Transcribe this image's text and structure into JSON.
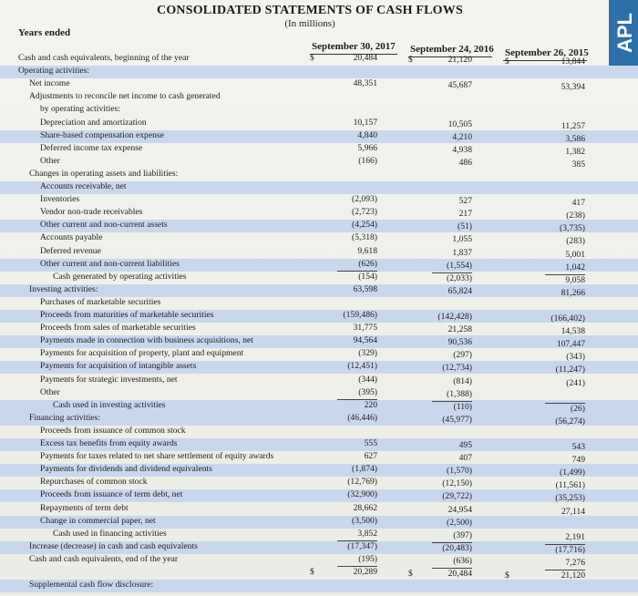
{
  "title": "CONSOLIDATED STATEMENTS OF CASH FLOWS",
  "subtitle": "(In millions)",
  "side_tab": "APL",
  "years_label": "Years ended",
  "columns": [
    "September 30, 2017",
    "September 24, 2016",
    "September 26, 2015"
  ],
  "rows": [
    {
      "label": "Cash and cash equivalents, beginning of the year",
      "indent": 0,
      "cur": "$",
      "values": [
        "20,484",
        "21,120",
        "13,844"
      ]
    },
    {
      "label": "Operating activities:",
      "indent": 0,
      "values": [
        "",
        "",
        ""
      ]
    },
    {
      "label": "Net income",
      "indent": 1,
      "values": [
        "48,351",
        "45,687",
        "53,394"
      ]
    },
    {
      "label": "Adjustments to reconcile net income to cash generated",
      "indent": 1,
      "values": [
        "",
        "",
        ""
      ]
    },
    {
      "label": "by operating activities:",
      "indent": 2,
      "values": [
        "",
        "",
        ""
      ]
    },
    {
      "label": "Depreciation and amortization",
      "indent": 2,
      "values": [
        "10,157",
        "10,505",
        "11,257"
      ]
    },
    {
      "label": "Share-based compensation expense",
      "indent": 2,
      "values": [
        "4,840",
        "4,210",
        "3,586"
      ]
    },
    {
      "label": "Deferred income tax expense",
      "indent": 2,
      "values": [
        "5,966",
        "4,938",
        "1,382"
      ]
    },
    {
      "label": "Other",
      "indent": 2,
      "values": [
        "(166)",
        "486",
        "385"
      ]
    },
    {
      "label": "Changes in operating assets and liabilities:",
      "indent": 1,
      "values": [
        "",
        "",
        ""
      ]
    },
    {
      "label": "Accounts receivable, net",
      "indent": 2,
      "values": [
        "",
        "",
        ""
      ]
    },
    {
      "label": "Inventories",
      "indent": 2,
      "values": [
        "(2,093)",
        "527",
        "417"
      ]
    },
    {
      "label": "Vendor non-trade receivables",
      "indent": 2,
      "values": [
        "(2,723)",
        "217",
        "(238)"
      ]
    },
    {
      "label": "Other current and non-current assets",
      "indent": 2,
      "values": [
        "(4,254)",
        "(51)",
        "(3,735)"
      ]
    },
    {
      "label": "Accounts payable",
      "indent": 2,
      "values": [
        "(5,318)",
        "1,055",
        "(283)"
      ]
    },
    {
      "label": "Deferred revenue",
      "indent": 2,
      "values": [
        "9,618",
        "1,837",
        "5,001"
      ]
    },
    {
      "label": "Other current and non-current liabilities",
      "indent": 2,
      "values": [
        "(626)",
        "(1,554)",
        "1,042"
      ]
    },
    {
      "label": "Cash generated by operating activities",
      "indent": 3,
      "values": [
        "(154)",
        "(2,033)",
        "9,058"
      ]
    },
    {
      "label": "Investing activities:",
      "indent": 1,
      "values": [
        "63,598",
        "65,824",
        "81,266"
      ]
    },
    {
      "label": "Purchases of marketable securities",
      "indent": 2,
      "values": [
        "",
        "",
        ""
      ]
    },
    {
      "label": "Proceeds from maturities of marketable securities",
      "indent": 2,
      "values": [
        "(159,486)",
        "(142,428)",
        "(166,402)"
      ]
    },
    {
      "label": "Proceeds from sales of marketable securities",
      "indent": 2,
      "values": [
        "31,775",
        "21,258",
        "14,538"
      ]
    },
    {
      "label": "Payments made in connection with business acquisitions, net",
      "indent": 2,
      "values": [
        "94,564",
        "90,536",
        "107,447"
      ]
    },
    {
      "label": "Payments for acquisition of property, plant and equipment",
      "indent": 2,
      "values": [
        "(329)",
        "(297)",
        "(343)"
      ]
    },
    {
      "label": "Payments for acquisition of intangible assets",
      "indent": 2,
      "values": [
        "(12,451)",
        "(12,734)",
        "(11,247)"
      ]
    },
    {
      "label": "Payments for strategic investments, net",
      "indent": 2,
      "values": [
        "(344)",
        "(814)",
        "(241)"
      ]
    },
    {
      "label": "Other",
      "indent": 2,
      "values": [
        "(395)",
        "(1,388)",
        ""
      ]
    },
    {
      "label": "Cash used in investing activities",
      "indent": 3,
      "values": [
        "220",
        "(110)",
        "(26)"
      ]
    },
    {
      "label": "Financing activities:",
      "indent": 1,
      "values": [
        "(46,446)",
        "(45,977)",
        "(56,274)"
      ]
    },
    {
      "label": "Proceeds from issuance of common stock",
      "indent": 2,
      "values": [
        "",
        "",
        ""
      ]
    },
    {
      "label": "Excess tax benefits from equity awards",
      "indent": 2,
      "values": [
        "555",
        "495",
        "543"
      ]
    },
    {
      "label": "Payments for taxes related to net share settlement of equity awards",
      "indent": 2,
      "values": [
        "627",
        "407",
        "749"
      ]
    },
    {
      "label": "Payments for dividends and dividend equivalents",
      "indent": 2,
      "values": [
        "(1,874)",
        "(1,570)",
        "(1,499)"
      ]
    },
    {
      "label": "Repurchases of common stock",
      "indent": 2,
      "values": [
        "(12,769)",
        "(12,150)",
        "(11,561)"
      ]
    },
    {
      "label": "Proceeds from issuance of term debt, net",
      "indent": 2,
      "values": [
        "(32,900)",
        "(29,722)",
        "(35,253)"
      ]
    },
    {
      "label": "Repayments of term debt",
      "indent": 2,
      "values": [
        "28,662",
        "24,954",
        "27,114"
      ]
    },
    {
      "label": "Change in commercial paper, net",
      "indent": 2,
      "values": [
        "(3,500)",
        "(2,500)",
        ""
      ]
    },
    {
      "label": "Cash used in financing activities",
      "indent": 3,
      "values": [
        "3,852",
        "(397)",
        "2,191"
      ]
    },
    {
      "label": "Increase (decrease) in cash and cash equivalents",
      "indent": 1,
      "values": [
        "(17,347)",
        "(20,483)",
        "(17,716)"
      ]
    },
    {
      "label": "Cash and cash equivalents, end of the year",
      "indent": 1,
      "values": [
        "(195)",
        "(636)",
        "7,276"
      ]
    },
    {
      "label": "",
      "indent": 1,
      "cur": "$",
      "values": [
        "20,289",
        "20,484",
        "21,120"
      ]
    },
    {
      "label": "Supplemental cash flow disclosure:",
      "indent": 1,
      "values": [
        "",
        "",
        ""
      ]
    }
  ]
}
